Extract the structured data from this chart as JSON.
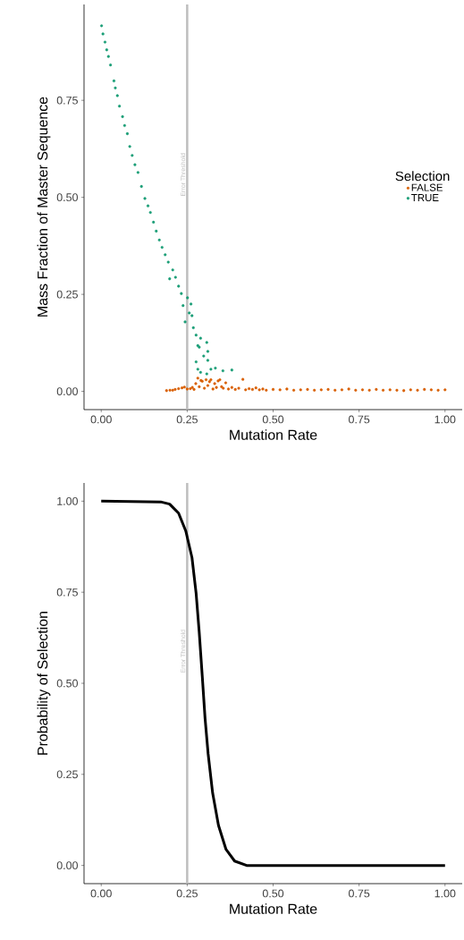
{
  "chart_data": [
    {
      "type": "scatter",
      "xlabel": "Mutation Rate",
      "ylabel": "Mass Fraction of Master Sequence",
      "legend_title": "Selection",
      "legend": "right",
      "marker": "circle",
      "grid": false,
      "xlim": [
        -0.05,
        1.05
      ],
      "ylim": [
        -0.047,
        0.997
      ],
      "xticks": [
        {
          "value": 0,
          "label": "0.00"
        },
        {
          "value": 0.25,
          "label": "0.25"
        },
        {
          "value": 0.5,
          "label": "0.50"
        },
        {
          "value": 0.75,
          "label": "0.75"
        },
        {
          "value": 1,
          "label": "1.00"
        }
      ],
      "yticks": [
        {
          "value": 0,
          "label": "0.00"
        },
        {
          "value": 0.25,
          "label": "0.25"
        },
        {
          "value": 0.5,
          "label": "0.50"
        },
        {
          "value": 0.75,
          "label": "0.75"
        }
      ],
      "ref_lines": [
        {
          "axis": "x",
          "value": 0.25,
          "label": "Error Threshold",
          "color": "#bebebe"
        }
      ],
      "series": [
        {
          "name": "FALSE",
          "color": "#d95f02",
          "x": [
            0.19,
            0.2,
            0.208,
            0.215,
            0.225,
            0.235,
            0.242,
            0.25,
            0.259,
            0.265,
            0.27,
            0.275,
            0.281,
            0.285,
            0.29,
            0.294,
            0.3,
            0.305,
            0.31,
            0.315,
            0.319,
            0.325,
            0.33,
            0.335,
            0.34,
            0.345,
            0.35,
            0.355,
            0.362,
            0.37,
            0.38,
            0.39,
            0.4,
            0.412,
            0.42,
            0.43,
            0.44,
            0.45,
            0.46,
            0.47,
            0.48,
            0.5,
            0.52,
            0.54,
            0.56,
            0.58,
            0.6,
            0.62,
            0.64,
            0.66,
            0.68,
            0.7,
            0.72,
            0.74,
            0.76,
            0.78,
            0.8,
            0.82,
            0.84,
            0.86,
            0.88,
            0.9,
            0.92,
            0.94,
            0.96,
            0.98,
            1.0
          ],
          "values": [
            0.002,
            0.003,
            0.003,
            0.005,
            0.007,
            0.009,
            0.011,
            0.006,
            0.007,
            0.01,
            0.005,
            0.02,
            0.034,
            0.012,
            0.028,
            0.026,
            0.008,
            0.03,
            0.015,
            0.025,
            0.03,
            0.006,
            0.02,
            0.01,
            0.027,
            0.03,
            0.012,
            0.008,
            0.022,
            0.006,
            0.01,
            0.005,
            0.008,
            0.031,
            0.004,
            0.007,
            0.005,
            0.009,
            0.004,
            0.006,
            0.003,
            0.005,
            0.004,
            0.006,
            0.003,
            0.004,
            0.005,
            0.003,
            0.004,
            0.005,
            0.003,
            0.004,
            0.006,
            0.003,
            0.004,
            0.003,
            0.005,
            0.003,
            0.004,
            0.003,
            0.002,
            0.004,
            0.003,
            0.005,
            0.004,
            0.003,
            0.004
          ]
        },
        {
          "name": "TRUE",
          "color": "#1b9e77",
          "x": [
            0.001,
            0.005,
            0.011,
            0.016,
            0.021,
            0.027,
            0.037,
            0.041,
            0.047,
            0.053,
            0.062,
            0.068,
            0.076,
            0.083,
            0.09,
            0.098,
            0.107,
            0.117,
            0.127,
            0.136,
            0.143,
            0.152,
            0.16,
            0.169,
            0.177,
            0.186,
            0.195,
            0.199,
            0.208,
            0.216,
            0.225,
            0.233,
            0.238,
            0.244,
            0.251,
            0.256,
            0.261,
            0.264,
            0.268,
            0.276,
            0.281,
            0.281,
            0.285,
            0.289,
            0.289,
            0.298,
            0.276,
            0.307,
            0.31,
            0.31,
            0.307,
            0.319,
            0.332,
            0.354,
            0.38
          ],
          "values": [
            0.942,
            0.921,
            0.9,
            0.88,
            0.863,
            0.841,
            0.8,
            0.782,
            0.762,
            0.735,
            0.708,
            0.685,
            0.664,
            0.631,
            0.608,
            0.584,
            0.564,
            0.528,
            0.497,
            0.478,
            0.461,
            0.436,
            0.413,
            0.39,
            0.371,
            0.352,
            0.333,
            0.29,
            0.313,
            0.294,
            0.271,
            0.252,
            0.221,
            0.179,
            0.241,
            0.202,
            0.225,
            0.195,
            0.164,
            0.145,
            0.118,
            0.057,
            0.114,
            0.137,
            0.049,
            0.091,
            0.076,
            0.126,
            0.103,
            0.08,
            0.045,
            0.057,
            0.06,
            0.053,
            0.055
          ]
        }
      ]
    },
    {
      "type": "line",
      "xlabel": "Mutation Rate",
      "ylabel": "Probability of Selection",
      "legend": false,
      "grid": false,
      "xlim": [
        -0.05,
        1.05
      ],
      "ylim": [
        -0.05,
        1.05
      ],
      "xticks": [
        {
          "value": 0,
          "label": "0.00"
        },
        {
          "value": 0.25,
          "label": "0.25"
        },
        {
          "value": 0.5,
          "label": "0.50"
        },
        {
          "value": 0.75,
          "label": "0.75"
        },
        {
          "value": 1,
          "label": "1.00"
        }
      ],
      "yticks": [
        {
          "value": 0,
          "label": "0.00"
        },
        {
          "value": 0.25,
          "label": "0.25"
        },
        {
          "value": 0.5,
          "label": "0.50"
        },
        {
          "value": 0.75,
          "label": "0.75"
        },
        {
          "value": 1,
          "label": "1.00"
        }
      ],
      "ref_lines": [
        {
          "axis": "x",
          "value": 0.25,
          "label": "Error Threshold",
          "color": "#bebebe"
        }
      ],
      "series": [
        {
          "color": "#000000",
          "x": [
            0.0,
            0.173,
            0.199,
            0.225,
            0.246,
            0.264,
            0.276,
            0.285,
            0.294,
            0.302,
            0.311,
            0.324,
            0.341,
            0.363,
            0.388,
            0.423,
            0.47,
            1.0
          ],
          "values": [
            1.0,
            0.998,
            0.992,
            0.967,
            0.918,
            0.845,
            0.747,
            0.641,
            0.518,
            0.404,
            0.306,
            0.199,
            0.11,
            0.044,
            0.012,
            0.0,
            0.0,
            0.0
          ]
        }
      ]
    }
  ]
}
